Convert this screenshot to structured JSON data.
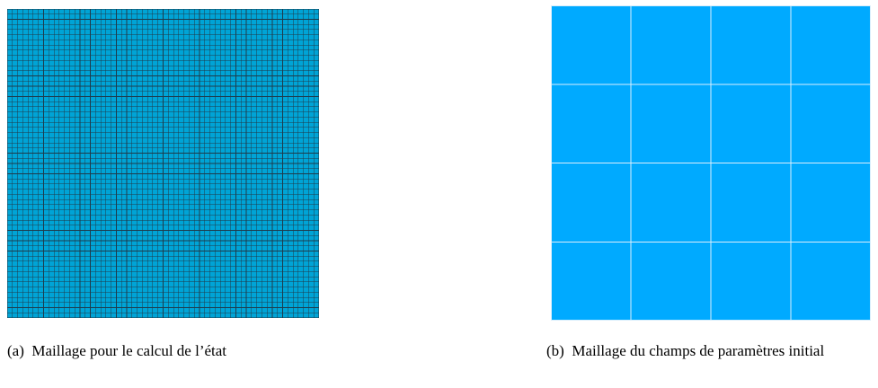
{
  "figure": {
    "panels": [
      {
        "label": "(a)",
        "caption": "Maillage pour le calcul de l’état",
        "mesh": {
          "rows": 60,
          "cols": 60,
          "fill": "#00a4d6",
          "line": "#1f3b4c"
        }
      },
      {
        "label": "(b)",
        "caption": "Maillage du champs de paramètres initial",
        "mesh": {
          "rows": 4,
          "cols": 4,
          "fill": "#00aaff",
          "line": "#d9eefc"
        }
      }
    ]
  }
}
